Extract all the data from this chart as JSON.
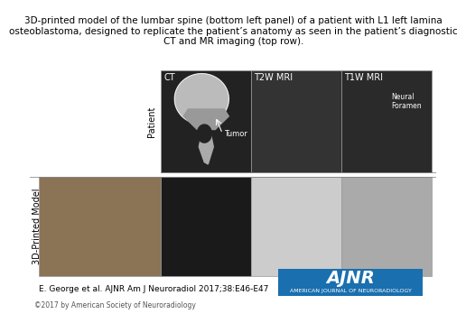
{
  "title": "3D-printed model of the lumbar spine (bottom left panel) of a patient with L1 left lamina\nosteoblastoma, designed to replicate the patient’s anatomy as seen in the patient’s diagnostic\nCT and MR imaging (top row).",
  "title_fontsize": 7.5,
  "citation": "E. George et al. AJNR Am J Neuroradiol 2017;38:E46-E47",
  "citation_fontsize": 6.5,
  "copyright": "©2017 by American Society of Neuroradiology",
  "copyright_fontsize": 5.5,
  "bg_color": "#ffffff",
  "border_color": "#cccccc",
  "row_labels": [
    "Patient",
    "3D-Printed Model"
  ],
  "col_labels": [
    "CT",
    "T2W MRI",
    "T1W MRI"
  ],
  "row_label_fontsize": 7,
  "col_label_fontsize": 7,
  "annotations": {
    "tumor": {
      "text": "Tumor",
      "fontsize": 6
    },
    "neural": {
      "text": "Neural\nForamen",
      "fontsize": 5.5
    }
  },
  "ainr_bg": "#1a6faf",
  "ainr_text": "AJNR",
  "ainr_subtext": "AMERICAN JOURNAL OF NEURORADIOLOGY",
  "ainr_fontsize": 14,
  "ainr_subfontsize": 4.5
}
